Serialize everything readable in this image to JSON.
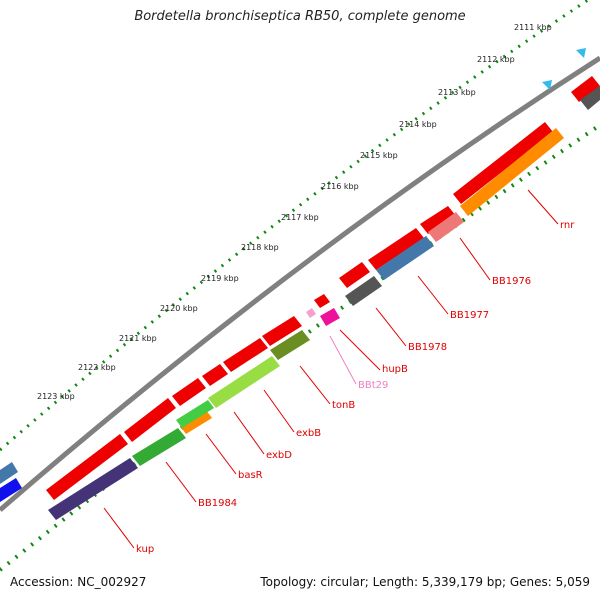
{
  "title": "Bordetella bronchiseptica RB50, complete genome",
  "accession": "Accession: NC_002927",
  "topology": "Topology: circular; Length: 5,339,179 bp; Genes: 5,059",
  "kbp_ticks": [
    "2111 kbp",
    "2112 kbp",
    "2113 kbp",
    "2114 kbp",
    "2115 kbp",
    "2116 kbp",
    "2117 kbp",
    "2118 kbp",
    "2119 kbp",
    "2120 kbp",
    "2121 kbp",
    "2122 kbp",
    "2123 kbp"
  ],
  "gene_labels": [
    {
      "text": "rnr",
      "color": "#e00000"
    },
    {
      "text": "BB1976",
      "color": "#e00000"
    },
    {
      "text": "BB1977",
      "color": "#e00000"
    },
    {
      "text": "BB1978",
      "color": "#e00000"
    },
    {
      "text": "hupB",
      "color": "#e00000"
    },
    {
      "text": "BBt29",
      "color": "#f080c0"
    },
    {
      "text": "tonB",
      "color": "#e00000"
    },
    {
      "text": "exbB",
      "color": "#e00000"
    },
    {
      "text": "exbD",
      "color": "#e00000"
    },
    {
      "text": "basR",
      "color": "#e00000"
    },
    {
      "text": "BB1984",
      "color": "#e00000"
    },
    {
      "text": "kup",
      "color": "#e00000"
    }
  ],
  "colors": {
    "cds": "#ee0000",
    "backbone": "#808080",
    "tick_dots": "#118811",
    "rnr": "#ff8c00",
    "BB1976": "#ee7777",
    "BB1977": "#4477aa",
    "BB1978": "#555555",
    "hupB": "#ee1199",
    "tonB": "#6b8e23",
    "exbB": "#99dd44",
    "exbD": "#44cc44",
    "basR": "#ff8c00",
    "BB1984": "#33aa33",
    "kup": "#443377"
  }
}
